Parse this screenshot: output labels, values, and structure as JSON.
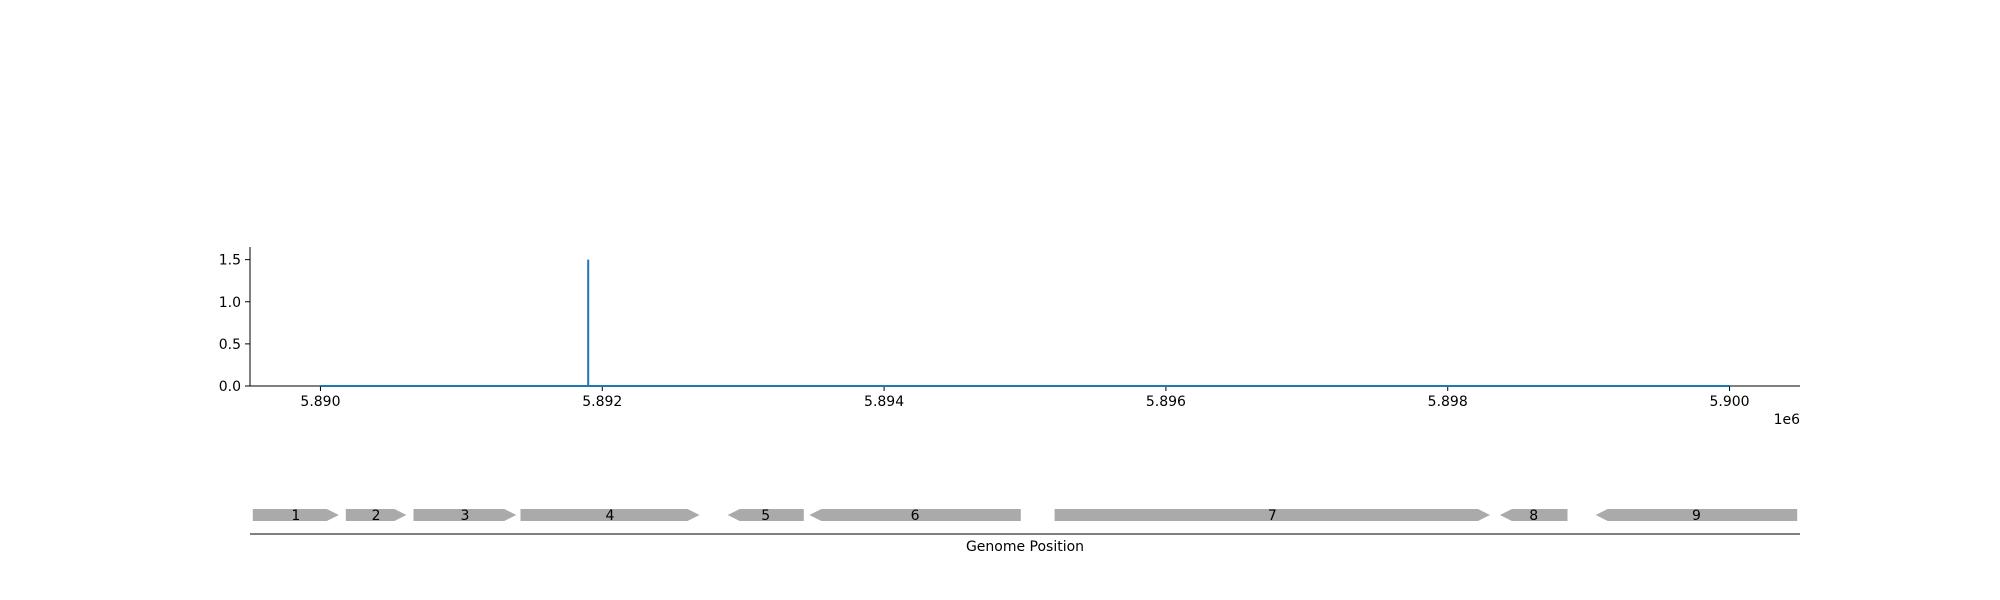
{
  "chart_data": [
    {
      "type": "line",
      "x": [
        5890000,
        5891900,
        5891900,
        5891900,
        5900000
      ],
      "y": [
        0,
        0,
        1.5,
        0,
        0
      ],
      "xlim": [
        5889500,
        5900500
      ],
      "ylim": [
        0,
        1.65
      ],
      "x_ticks": [
        5890000,
        5892000,
        5894000,
        5896000,
        5898000,
        5900000
      ],
      "x_tick_labels": [
        "5.890",
        "5.892",
        "5.894",
        "5.896",
        "5.898",
        "5.900"
      ],
      "x_offset_label": "1e6",
      "y_ticks": [
        0,
        0.5,
        1.0,
        1.5
      ],
      "y_tick_labels": [
        "0.0",
        "0.5",
        "1.0",
        "1.5"
      ],
      "series_color": "#1f77b4",
      "grid": false
    },
    {
      "type": "gene-track",
      "xlabel": "Genome Position",
      "feature_color": "#aaaaaa",
      "genes": [
        {
          "label": "1",
          "start": 5889520,
          "end": 5890130,
          "strand": "+"
        },
        {
          "label": "2",
          "start": 5890180,
          "end": 5890610,
          "strand": "+"
        },
        {
          "label": "3",
          "start": 5890660,
          "end": 5891390,
          "strand": "+"
        },
        {
          "label": "4",
          "start": 5891420,
          "end": 5892690,
          "strand": "+"
        },
        {
          "label": "5",
          "start": 5892890,
          "end": 5893430,
          "strand": "-"
        },
        {
          "label": "6",
          "start": 5893470,
          "end": 5894970,
          "strand": "-"
        },
        {
          "label": "7",
          "start": 5895210,
          "end": 5898300,
          "strand": "+"
        },
        {
          "label": "8",
          "start": 5898370,
          "end": 5898850,
          "strand": "-"
        },
        {
          "label": "9",
          "start": 5899050,
          "end": 5900480,
          "strand": "-"
        }
      ]
    }
  ]
}
